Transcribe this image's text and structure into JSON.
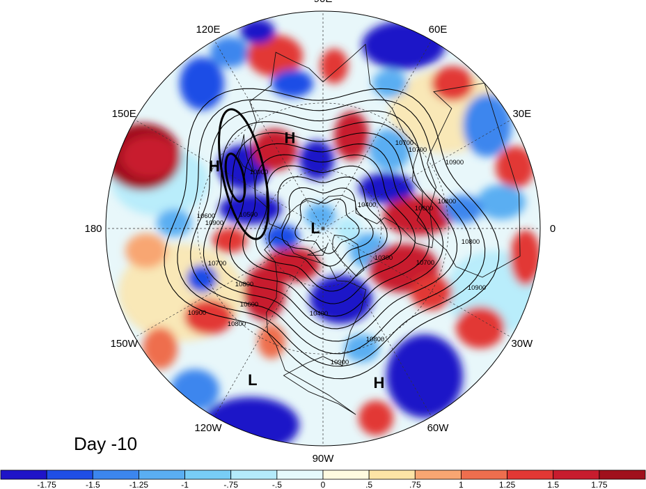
{
  "title": "Day -10",
  "longitude_labels": [
    {
      "text": "90E",
      "lon": 90
    },
    {
      "text": "60E",
      "lon": 60
    },
    {
      "text": "30E",
      "lon": 30
    },
    {
      "text": "0",
      "lon": 0
    },
    {
      "text": "30W",
      "lon": -30
    },
    {
      "text": "60W",
      "lon": -60
    },
    {
      "text": "90W",
      "lon": -90
    },
    {
      "text": "120W",
      "lon": -120
    },
    {
      "text": "150W",
      "lon": -150
    },
    {
      "text": "180",
      "lon": 180
    },
    {
      "text": "150E",
      "lon": 150
    },
    {
      "text": "120E",
      "lon": 120
    }
  ],
  "pressure_centers": [
    {
      "text": "H",
      "lon": 110,
      "lat": 42
    },
    {
      "text": "H",
      "lon": 150,
      "lat": 30
    },
    {
      "text": "L",
      "lon": 175,
      "lat": 86
    },
    {
      "text": "L",
      "lon": -115,
      "lat": 15
    },
    {
      "text": "H",
      "lon": -70,
      "lat": 16
    }
  ],
  "contour_labels": [
    "10900",
    "10900",
    "10700",
    "10800",
    "10600",
    "10500",
    "10400",
    "10300",
    "10700",
    "10800",
    "10900",
    "10800",
    "10900",
    "10600",
    "10700",
    "10800",
    "10900",
    "10400",
    "10600",
    "10900",
    "10800",
    "10700"
  ],
  "colorbar": {
    "ticks": [
      "-1.75",
      "-1.5",
      "-1.25",
      "-1",
      "-.75",
      "-.5",
      "0",
      ".5",
      ".75",
      "1",
      "1.25",
      "1.5",
      "1.75"
    ],
    "colors": [
      "#1f14c8",
      "#1f4ee6",
      "#3c86ee",
      "#5aaef2",
      "#78cdf6",
      "#b4ebfb",
      "#e6fafc",
      "#fffbe0",
      "#fde4a6",
      "#f8a672",
      "#ee6e4e",
      "#e23834",
      "#c81c2e",
      "#a0101c"
    ]
  }
}
